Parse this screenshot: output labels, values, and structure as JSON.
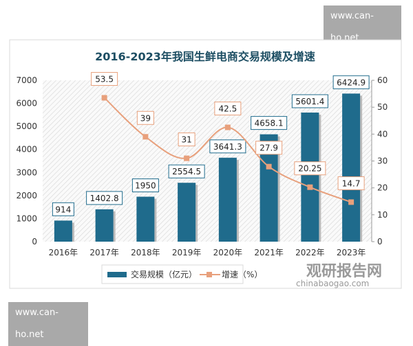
{
  "watermarks": {
    "top": "www.can-ho.net",
    "bottom": "www.can-ho.net",
    "logo_cn": "观研报告网",
    "logo_en": "chinabaogao.com"
  },
  "chart_data": {
    "type": "bar+line",
    "title": "2016-2023年我国生鲜电商交易规模及增速",
    "categories": [
      "2016年",
      "2017年",
      "2018年",
      "2019年",
      "2020年",
      "2021年",
      "2022年",
      "2023年"
    ],
    "series": [
      {
        "name": "交易规模（亿元）",
        "type": "bar",
        "axis": "left",
        "values": [
          914,
          1402.8,
          1950,
          2554.5,
          3641.3,
          4658.1,
          5601.4,
          6424.9
        ],
        "labels": [
          "914",
          "1402.8",
          "1950",
          "2554.5",
          "3641.3",
          "4658.1",
          "5601.4",
          "6424.9"
        ],
        "color": "#1f6b8c"
      },
      {
        "name": "增速（%）",
        "type": "line",
        "axis": "right",
        "values": [
          null,
          53.5,
          39,
          31,
          42.5,
          27.9,
          20.25,
          14.7
        ],
        "labels": [
          "",
          "53.5",
          "39",
          "31",
          "42.5",
          "27.9",
          "20.25",
          "14.7"
        ],
        "color": "#e8a07c"
      }
    ],
    "y_left": {
      "range": [
        0,
        7000
      ],
      "ticks": [
        "0",
        "1000",
        "2000",
        "3000",
        "4000",
        "5000",
        "6000",
        "7000"
      ]
    },
    "y_right": {
      "range": [
        0,
        60
      ],
      "ticks": [
        "0",
        "10",
        "20",
        "30",
        "40",
        "50",
        "60"
      ]
    },
    "legend_position": "bottom"
  }
}
